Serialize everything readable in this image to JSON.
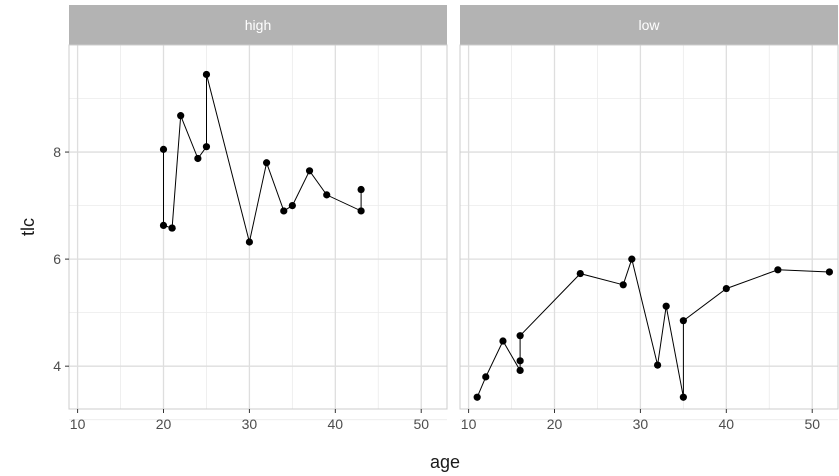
{
  "chart_data": {
    "type": "line",
    "xlabel": "age",
    "ylabel": "tlc",
    "xlim": [
      9,
      53
    ],
    "ylim": [
      3.2,
      10.0
    ],
    "x_ticks": [
      10,
      20,
      30,
      40,
      50
    ],
    "x_tick_labels": [
      "10",
      "20",
      "30",
      "40",
      "50"
    ],
    "y_ticks": [
      4,
      6,
      8
    ],
    "y_tick_labels": [
      "4",
      "6",
      "8"
    ],
    "grid": true,
    "panels": [
      {
        "name": "high",
        "x": [
          20,
          20,
          21,
          21,
          22,
          24,
          25,
          25,
          30,
          32,
          34,
          35,
          37,
          39,
          43,
          43
        ],
        "y": [
          8.05,
          6.63,
          6.58,
          6.58,
          8.68,
          7.88,
          8.1,
          9.45,
          6.32,
          7.8,
          6.9,
          7.0,
          7.65,
          7.2,
          6.9,
          7.3
        ]
      },
      {
        "name": "low",
        "x": [
          11,
          12,
          14,
          16,
          16,
          16,
          23,
          28,
          29,
          32,
          33,
          35,
          35,
          40,
          46,
          52
        ],
        "y": [
          3.42,
          3.8,
          4.47,
          3.92,
          4.1,
          4.57,
          5.73,
          5.52,
          6.0,
          4.02,
          5.12,
          3.42,
          4.85,
          5.45,
          5.8,
          5.76
        ]
      }
    ]
  }
}
